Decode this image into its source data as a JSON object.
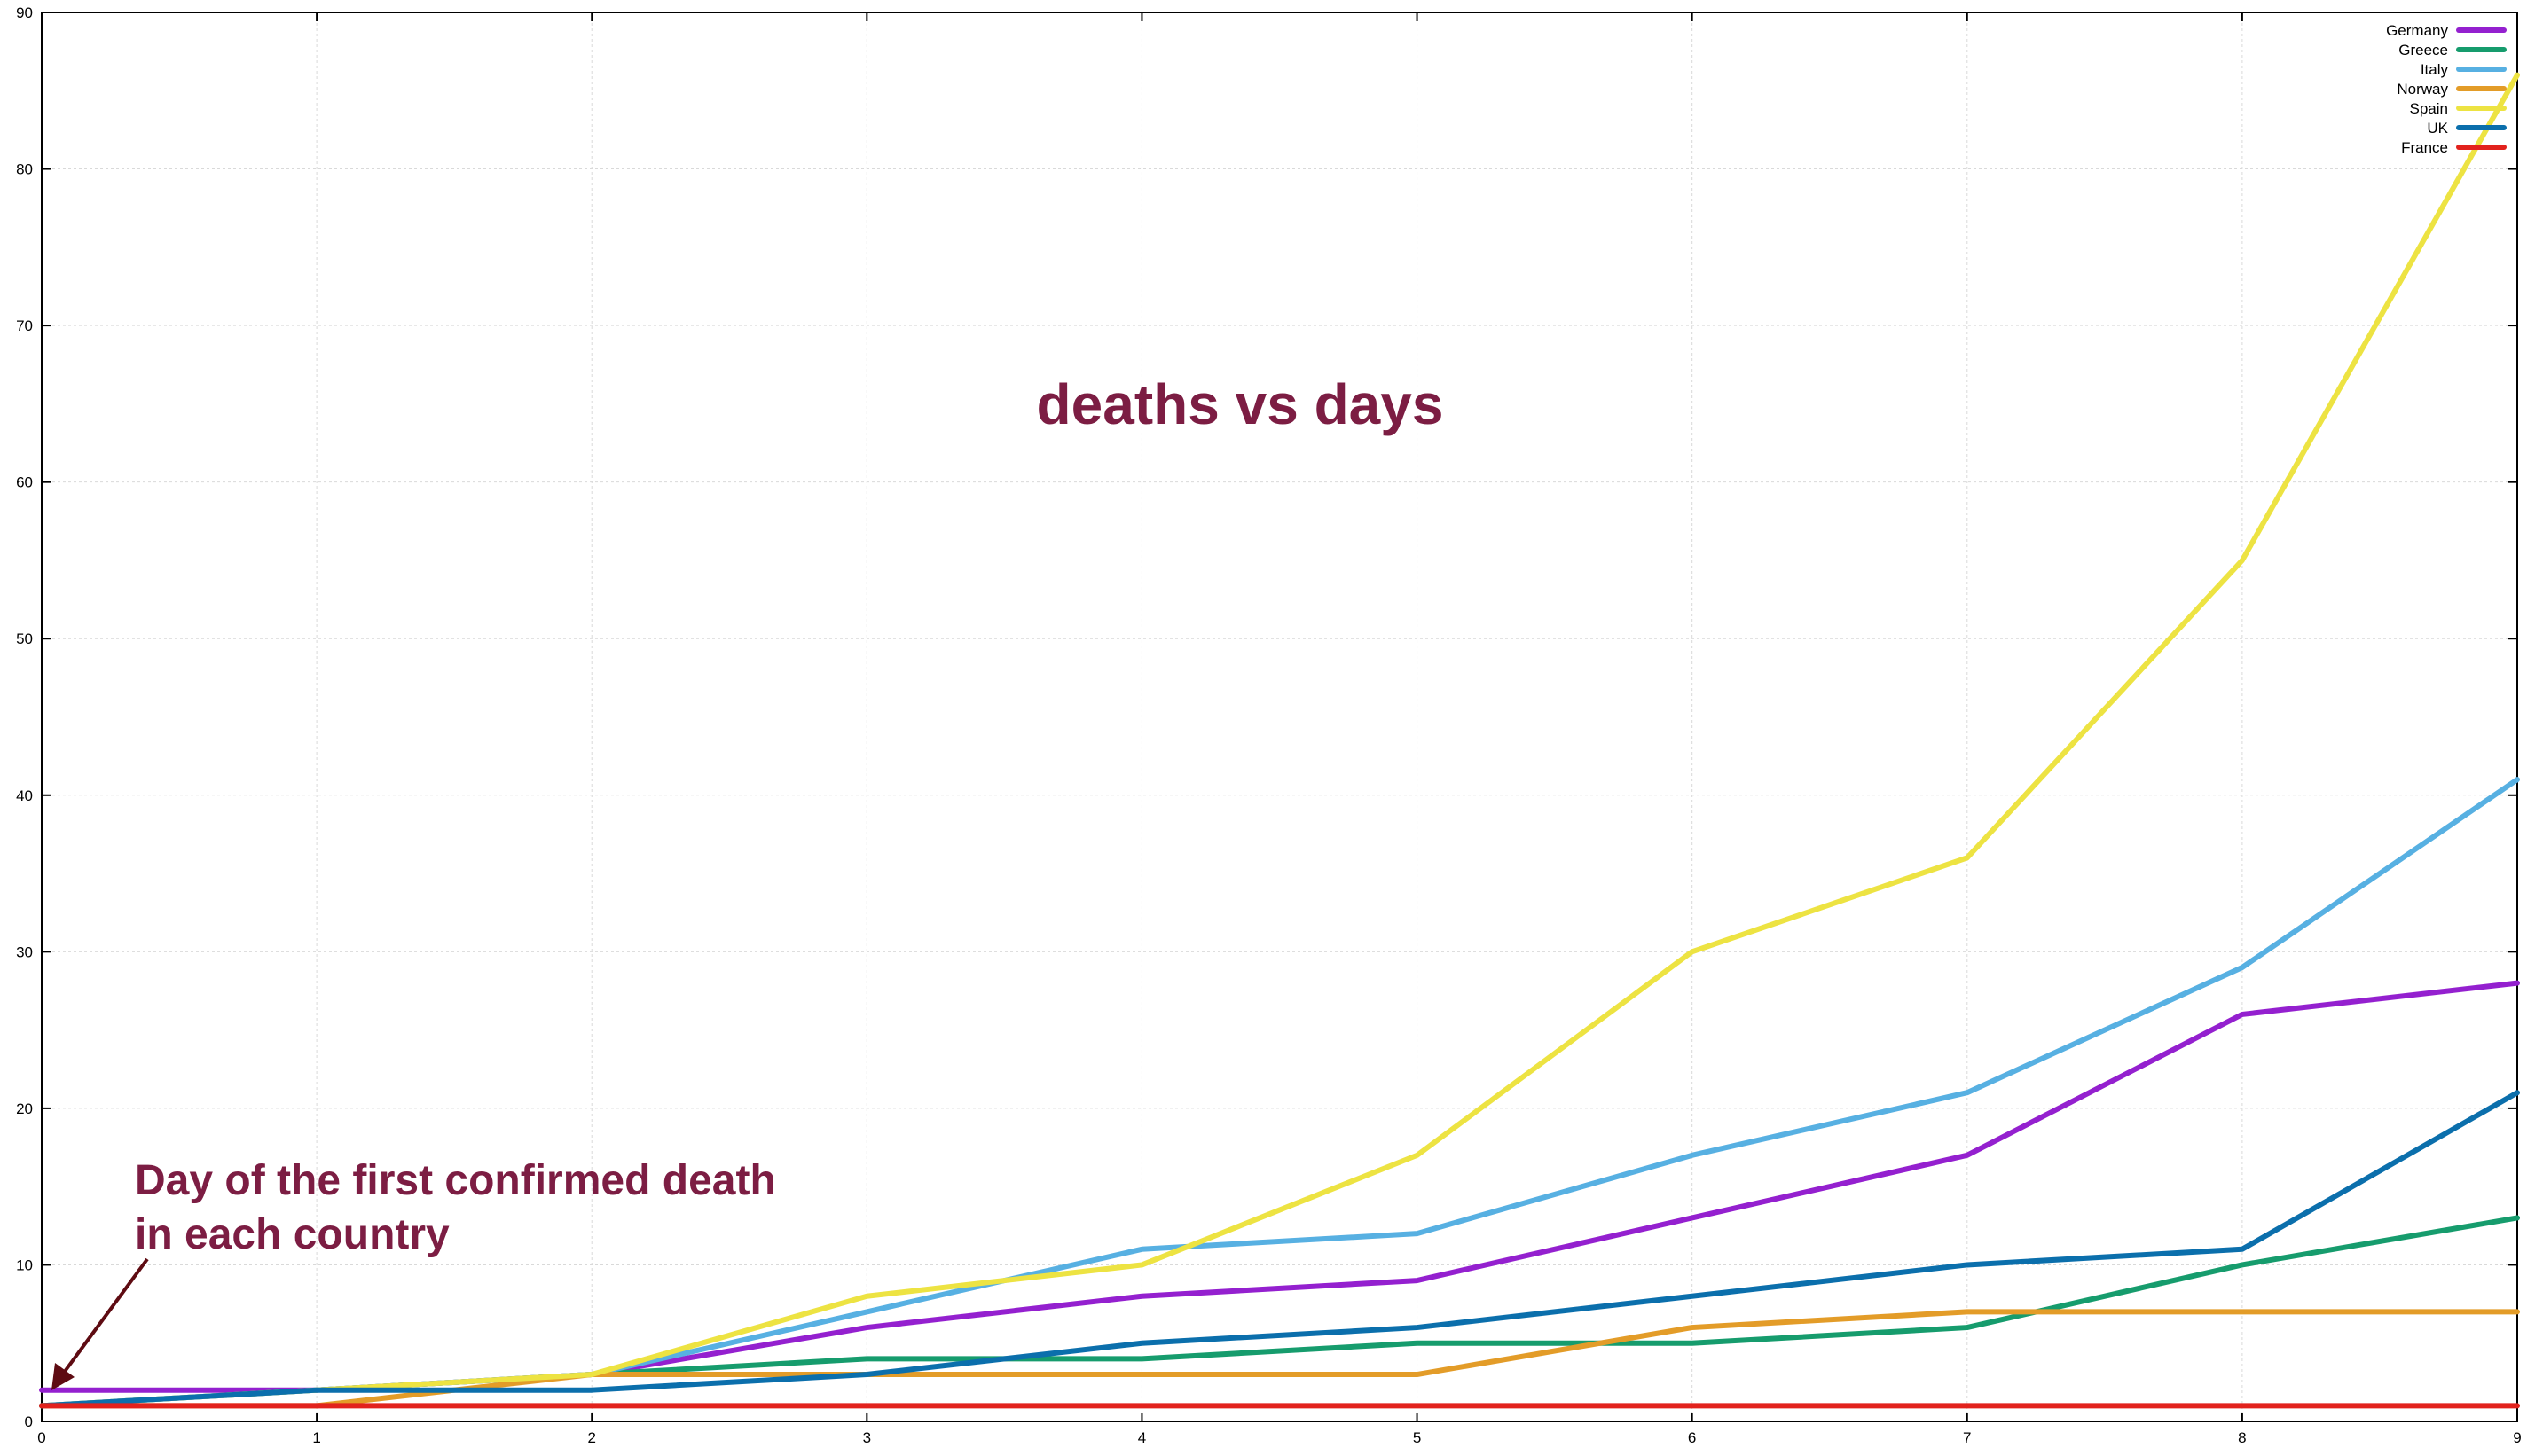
{
  "chart_data": {
    "type": "line",
    "title": "deaths vs days",
    "xlabel": "",
    "ylabel": "",
    "x": [
      0,
      1,
      2,
      3,
      4,
      5,
      6,
      7,
      8,
      9
    ],
    "xlim": [
      0,
      9
    ],
    "ylim": [
      0,
      90
    ],
    "xticks": [
      "0",
      "1",
      "2",
      "3",
      "4",
      "5",
      "6",
      "7",
      "8",
      "9"
    ],
    "yticks": [
      "0",
      "10",
      "20",
      "30",
      "40",
      "50",
      "60",
      "70",
      "80",
      "90"
    ],
    "grid": true,
    "legend_position": "top-right",
    "series": [
      {
        "name": "Germany",
        "color": "#9420cf",
        "values": [
          2,
          2,
          3,
          6,
          8,
          9,
          13,
          17,
          26,
          28
        ]
      },
      {
        "name": "Greece",
        "color": "#169c6d",
        "values": [
          1,
          2,
          3,
          4,
          4,
          5,
          5,
          6,
          10,
          13
        ]
      },
      {
        "name": "Italy",
        "color": "#57b0e2",
        "values": [
          1,
          2,
          3,
          7,
          11,
          12,
          17,
          21,
          29,
          41
        ]
      },
      {
        "name": "Norway",
        "color": "#e39c28",
        "values": [
          1,
          1,
          3,
          3,
          3,
          3,
          6,
          7,
          7,
          7
        ]
      },
      {
        "name": "Spain",
        "color": "#ede342",
        "values": [
          1,
          2,
          3,
          8,
          10,
          17,
          30,
          36,
          55,
          86
        ]
      },
      {
        "name": "UK",
        "color": "#0b6fac",
        "values": [
          1,
          2,
          2,
          3,
          5,
          6,
          8,
          10,
          11,
          21
        ]
      },
      {
        "name": "France",
        "color": "#e2221d",
        "values": [
          1,
          1,
          1,
          1,
          1,
          1,
          1,
          1,
          1,
          1
        ]
      }
    ],
    "annotation": {
      "text_line1": "Day of the first confirmed death",
      "text_line2": "in each country",
      "color": "#7c1d43",
      "arrow_color": "#5e0b12"
    },
    "title_color": "#7c1d43"
  }
}
